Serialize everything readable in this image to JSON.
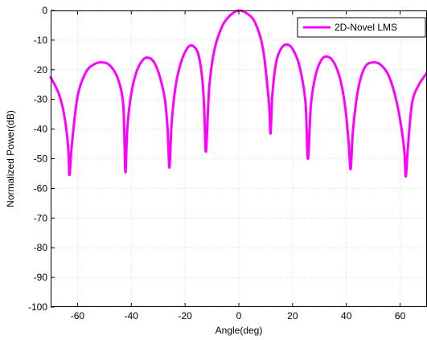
{
  "chart_data": {
    "type": "line",
    "title": "",
    "xlabel": "Angle(deg)",
    "ylabel": "Normalized Power(dB)",
    "xlim": [
      -70,
      70
    ],
    "ylim": [
      -100,
      0
    ],
    "grid": true,
    "legend_position": "top-right",
    "x_ticks": [
      -60,
      -40,
      -20,
      0,
      20,
      40,
      60
    ],
    "x_tick_labels": [
      "-60",
      "-40",
      "-20",
      "0",
      "20",
      "40",
      "60"
    ],
    "y_ticks": [
      0,
      -10,
      -20,
      -30,
      -40,
      -50,
      -60,
      -70,
      -80,
      -90,
      -100
    ],
    "y_tick_labels": [
      "0",
      "-10",
      "-20",
      "-30",
      "-40",
      "-50",
      "-60",
      "-70",
      "-80",
      "-90",
      "-100"
    ],
    "series": [
      {
        "name": "2D-Novel LMS",
        "color": "#ff00ff",
        "x": [
          -70,
          -67,
          -65,
          -63.5,
          -63,
          -62.2,
          -60,
          -57,
          -54,
          -51,
          -48,
          -45,
          -43,
          -42.2,
          -41.5,
          -40,
          -38,
          -35.5,
          -33.5,
          -31.5,
          -29.5,
          -27.5,
          -26.5,
          -25.8,
          -25,
          -23.5,
          -21.5,
          -19,
          -17,
          -15,
          -13.5,
          -12.8,
          -12.2,
          -11,
          -9,
          -6,
          -3,
          0,
          3,
          6,
          9,
          11.2,
          11.8,
          12.5,
          14,
          16,
          18,
          20,
          22.5,
          24.8,
          25.7,
          26.8,
          28.5,
          30.5,
          32.5,
          35,
          37.5,
          39.5,
          40.8,
          41.6,
          42.5,
          44.5,
          47,
          50,
          53,
          56,
          59,
          61.4,
          62.1,
          62.9,
          64.5,
          67,
          70
        ],
        "y": [
          -22.5,
          -28,
          -35,
          -46,
          -55.5,
          -46,
          -29,
          -21,
          -18.2,
          -17.5,
          -18.5,
          -23,
          -32,
          -54.5,
          -40,
          -28,
          -20.5,
          -16.5,
          -16,
          -17.5,
          -22,
          -30,
          -40,
          -53,
          -38,
          -25.5,
          -17.5,
          -12.5,
          -12,
          -15,
          -24,
          -35,
          -47.5,
          -26,
          -13,
          -5,
          -1.5,
          0,
          -1,
          -4,
          -13,
          -31,
          -41.5,
          -28,
          -17,
          -12.5,
          -11.5,
          -13,
          -18.5,
          -31,
          -50,
          -32,
          -22,
          -17,
          -15.5,
          -17,
          -22.5,
          -32,
          -44,
          -53.5,
          -40,
          -26,
          -19,
          -17.5,
          -18.5,
          -22.5,
          -32,
          -46,
          -56,
          -46,
          -31,
          -25,
          -21
        ]
      }
    ]
  }
}
